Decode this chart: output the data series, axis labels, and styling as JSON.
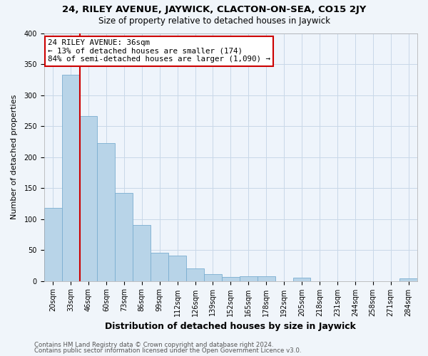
{
  "title": "24, RILEY AVENUE, JAYWICK, CLACTON-ON-SEA, CO15 2JY",
  "subtitle": "Size of property relative to detached houses in Jaywick",
  "xlabel": "Distribution of detached houses by size in Jaywick",
  "ylabel": "Number of detached properties",
  "bar_labels": [
    "20sqm",
    "33sqm",
    "46sqm",
    "60sqm",
    "73sqm",
    "86sqm",
    "99sqm",
    "112sqm",
    "126sqm",
    "139sqm",
    "152sqm",
    "165sqm",
    "178sqm",
    "192sqm",
    "205sqm",
    "218sqm",
    "231sqm",
    "244sqm",
    "258sqm",
    "271sqm",
    "284sqm"
  ],
  "bar_heights": [
    118,
    333,
    266,
    222,
    142,
    90,
    45,
    41,
    20,
    11,
    6,
    8,
    8,
    0,
    5,
    0,
    0,
    0,
    0,
    0,
    4
  ],
  "bar_color": "#b8d4e8",
  "bar_edge_color": "#7aaed0",
  "property_line_color": "#cc0000",
  "property_line_x": 1.5,
  "annotation_text": "24 RILEY AVENUE: 36sqm\n← 13% of detached houses are smaller (174)\n84% of semi-detached houses are larger (1,090) →",
  "annotation_box_facecolor": "#ffffff",
  "annotation_box_edgecolor": "#cc0000",
  "ylim": [
    0,
    400
  ],
  "yticks": [
    0,
    50,
    100,
    150,
    200,
    250,
    300,
    350,
    400
  ],
  "footer_line1": "Contains HM Land Registry data © Crown copyright and database right 2024.",
  "footer_line2": "Contains public sector information licensed under the Open Government Licence v3.0.",
  "bg_color": "#f0f5fa",
  "plot_bg_color": "#eef4fb",
  "grid_color": "#c8d8e8",
  "title_fontsize": 9.5,
  "subtitle_fontsize": 8.5,
  "xlabel_fontsize": 9,
  "ylabel_fontsize": 8,
  "tick_fontsize": 7,
  "annotation_fontsize": 7.8,
  "footer_fontsize": 6.2
}
